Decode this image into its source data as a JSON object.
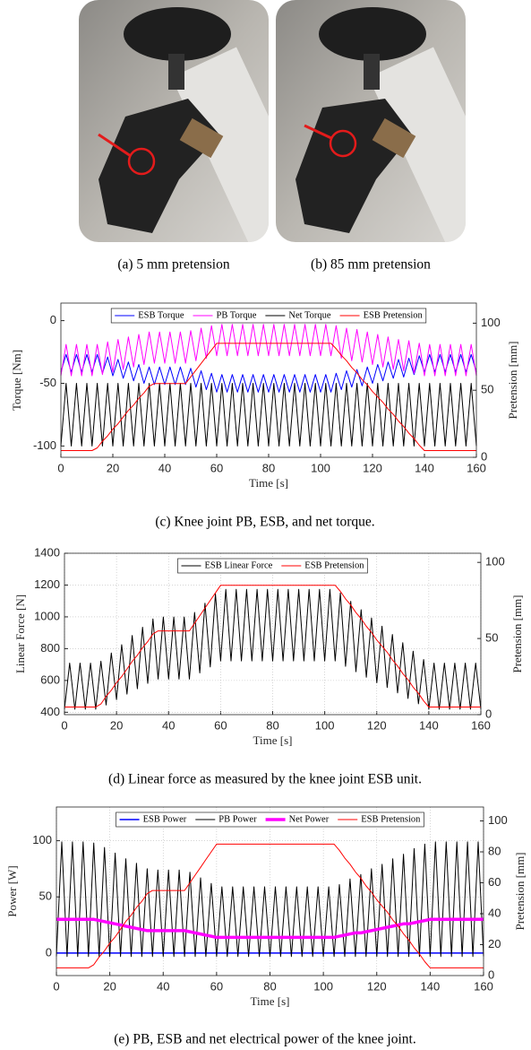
{
  "photos": [
    {
      "caption": "(a) 5 mm pretension"
    },
    {
      "caption": "(b) 85 mm pretension"
    }
  ],
  "chart_data": [
    {
      "type": "line",
      "caption": "(c) Knee joint PB, ESB, and net torque.",
      "xlabel": "Time [s]",
      "ylabel": "Torque [Nm]",
      "y2label": "Pretension [mm]",
      "xlim": [
        0,
        160
      ],
      "xticks": [
        0,
        20,
        40,
        60,
        80,
        100,
        120,
        140,
        160
      ],
      "ylim": [
        -109,
        14
      ],
      "yticks": [
        -100,
        -50,
        0
      ],
      "y2lim": [
        0,
        115
      ],
      "y2ticks": [
        0,
        50,
        100
      ],
      "grid": false,
      "legend": "top",
      "x": [
        0,
        2,
        4,
        6,
        8,
        10,
        12,
        14,
        16,
        18,
        20,
        22,
        24,
        26,
        28,
        30,
        32,
        34,
        36,
        38,
        40,
        42,
        44,
        46,
        48,
        50,
        52,
        54,
        56,
        58,
        60,
        62,
        64,
        66,
        68,
        70,
        72,
        74,
        76,
        78,
        80,
        82,
        84,
        86,
        88,
        90,
        92,
        94,
        96,
        98,
        100,
        102,
        104,
        106,
        108,
        110,
        112,
        114,
        116,
        118,
        120,
        122,
        124,
        126,
        128,
        130,
        132,
        134,
        136,
        138,
        140,
        142,
        144,
        146,
        148,
        150,
        152,
        154,
        156,
        158,
        160
      ],
      "series": [
        {
          "name": "ESB Torque",
          "color": "#0000ff",
          "values": [
            -41,
            -27,
            -41,
            -27,
            -41,
            -27,
            -41,
            -27,
            -42,
            -29,
            -44,
            -31,
            -46,
            -33,
            -48,
            -35,
            -50,
            -37,
            -51,
            -37,
            -51,
            -37,
            -51,
            -37,
            -51,
            -38,
            -53,
            -40,
            -55,
            -42,
            -57,
            -43,
            -57,
            -43,
            -57,
            -43,
            -57,
            -43,
            -57,
            -43,
            -57,
            -43,
            -57,
            -43,
            -57,
            -43,
            -57,
            -43,
            -57,
            -43,
            -57,
            -43,
            -57,
            -42,
            -55,
            -40,
            -53,
            -39,
            -52,
            -37,
            -50,
            -35,
            -48,
            -33,
            -46,
            -31,
            -45,
            -30,
            -43,
            -28,
            -41,
            -27,
            -41,
            -27,
            -41,
            -27,
            -41,
            -27,
            -41,
            -27,
            -41
          ]
        },
        {
          "name": "PB Torque",
          "color": "#ff00ff",
          "values": [
            -44,
            -19,
            -44,
            -19,
            -44,
            -19,
            -44,
            -19,
            -43,
            -17,
            -41,
            -15,
            -39,
            -13,
            -37,
            -11,
            -35,
            -9,
            -34,
            -9,
            -34,
            -9,
            -34,
            -9,
            -34,
            -8,
            -32,
            -6,
            -30,
            -4,
            -28,
            -3,
            -28,
            -3,
            -28,
            -3,
            -28,
            -3,
            -28,
            -3,
            -28,
            -3,
            -28,
            -3,
            -28,
            -3,
            -28,
            -3,
            -28,
            -3,
            -28,
            -3,
            -28,
            -4,
            -30,
            -6,
            -32,
            -7,
            -33,
            -9,
            -35,
            -11,
            -37,
            -13,
            -39,
            -15,
            -40,
            -16,
            -42,
            -18,
            -44,
            -19,
            -44,
            -19,
            -44,
            -19,
            -44,
            -19,
            -44,
            -19,
            -44
          ]
        },
        {
          "name": "Net Torque",
          "color": "#000000",
          "values": [
            -100,
            -50,
            -100,
            -50,
            -100,
            -50,
            -100,
            -50,
            -100,
            -50,
            -100,
            -50,
            -100,
            -50,
            -100,
            -50,
            -100,
            -50,
            -100,
            -50,
            -100,
            -50,
            -100,
            -50,
            -100,
            -50,
            -100,
            -50,
            -100,
            -50,
            -100,
            -50,
            -100,
            -50,
            -100,
            -50,
            -100,
            -50,
            -100,
            -50,
            -100,
            -50,
            -100,
            -50,
            -100,
            -50,
            -100,
            -50,
            -100,
            -50,
            -100,
            -50,
            -100,
            -50,
            -100,
            -50,
            -100,
            -50,
            -100,
            -50,
            -100,
            -50,
            -100,
            -50,
            -100,
            -50,
            -100,
            -50,
            -100,
            -50,
            -100,
            -50,
            -100,
            -50,
            -100,
            -50,
            -100,
            -50,
            -100,
            -50,
            -100
          ]
        },
        {
          "name": "ESB Pretension",
          "color": "#ff0000",
          "axis": "y2",
          "values": [
            5,
            5,
            5,
            5,
            5,
            5,
            5,
            7,
            12,
            16,
            21,
            25,
            30,
            35,
            39,
            44,
            48,
            53,
            55,
            55,
            55,
            55,
            55,
            55,
            55,
            60,
            65,
            70,
            75,
            80,
            85,
            85,
            85,
            85,
            85,
            85,
            85,
            85,
            85,
            85,
            85,
            85,
            85,
            85,
            85,
            85,
            85,
            85,
            85,
            85,
            85,
            85,
            85,
            81,
            76,
            72,
            67,
            63,
            58,
            54,
            49,
            45,
            41,
            36,
            32,
            27,
            23,
            18,
            14,
            9,
            5,
            5,
            5,
            5,
            5,
            5,
            5,
            5,
            5,
            5,
            5
          ]
        }
      ]
    },
    {
      "type": "line",
      "caption": "(d) Linear force as measured by the knee joint ESB unit.",
      "xlabel": "Time [s]",
      "ylabel": "Linear Force [N]",
      "y2label": "Pretension [mm]",
      "xlim": [
        0,
        160
      ],
      "xticks": [
        0,
        20,
        40,
        60,
        80,
        100,
        120,
        140,
        160
      ],
      "ylim": [
        385,
        1400
      ],
      "yticks": [
        400,
        600,
        800,
        1000,
        1200,
        1400
      ],
      "y2lim": [
        0,
        106
      ],
      "y2ticks": [
        0,
        50,
        100
      ],
      "grid": true,
      "legend": "top",
      "x": [
        0,
        2,
        4,
        6,
        8,
        10,
        12,
        14,
        16,
        18,
        20,
        22,
        24,
        26,
        28,
        30,
        32,
        34,
        36,
        38,
        40,
        42,
        44,
        46,
        48,
        50,
        52,
        54,
        56,
        58,
        60,
        62,
        64,
        66,
        68,
        70,
        72,
        74,
        76,
        78,
        80,
        82,
        84,
        86,
        88,
        90,
        92,
        94,
        96,
        98,
        100,
        102,
        104,
        106,
        108,
        110,
        112,
        114,
        116,
        118,
        120,
        122,
        124,
        126,
        128,
        130,
        132,
        134,
        136,
        138,
        140,
        142,
        144,
        146,
        148,
        150,
        152,
        154,
        156,
        158,
        160
      ],
      "series": [
        {
          "name": "ESB Linear Force",
          "color": "#000000",
          "values": [
            419,
            709,
            419,
            709,
            419,
            709,
            419,
            721,
            446,
            773,
            480,
            825,
            514,
            883,
            548,
            935,
            582,
            987,
            609,
            999,
            609,
            999,
            609,
            999,
            609,
            1028,
            647,
            1086,
            685,
            1144,
            723,
            1173,
            723,
            1173,
            723,
            1173,
            723,
            1173,
            723,
            1173,
            723,
            1173,
            723,
            1173,
            723,
            1173,
            723,
            1173,
            723,
            1173,
            723,
            1173,
            723,
            1150,
            689,
            1098,
            655,
            1045,
            620,
            993,
            586,
            941,
            556,
            889,
            522,
            837,
            487,
            784,
            453,
            732,
            419,
            709,
            419,
            709,
            419,
            709,
            419,
            709,
            419,
            709,
            419
          ]
        },
        {
          "name": "ESB Pretension",
          "color": "#ff0000",
          "axis": "y2",
          "values": [
            5,
            5,
            5,
            5,
            5,
            5,
            5,
            7,
            12,
            16,
            21,
            25,
            30,
            35,
            39,
            44,
            48,
            53,
            55,
            55,
            55,
            55,
            55,
            55,
            55,
            60,
            65,
            70,
            75,
            80,
            85,
            85,
            85,
            85,
            85,
            85,
            85,
            85,
            85,
            85,
            85,
            85,
            85,
            85,
            85,
            85,
            85,
            85,
            85,
            85,
            85,
            85,
            85,
            81,
            76,
            72,
            67,
            63,
            58,
            54,
            49,
            45,
            41,
            36,
            32,
            27,
            23,
            18,
            14,
            9,
            5,
            5,
            5,
            5,
            5,
            5,
            5,
            5,
            5,
            5,
            5
          ]
        }
      ]
    },
    {
      "type": "line",
      "caption": "(e) PB, ESB and net electrical power of the knee joint.",
      "xlabel": "Time [s]",
      "ylabel": "Power [W]",
      "y2label": "Pretension [mm]",
      "xlim": [
        0,
        160
      ],
      "xticks": [
        0,
        20,
        40,
        60,
        80,
        100,
        120,
        140,
        160
      ],
      "ylim": [
        -20,
        130
      ],
      "yticks": [
        0,
        50,
        100
      ],
      "y2lim": [
        0,
        109
      ],
      "y2ticks": [
        0,
        20,
        40,
        60,
        80,
        100
      ],
      "grid": true,
      "legend": "top",
      "x": [
        0,
        2,
        4,
        6,
        8,
        10,
        12,
        14,
        16,
        18,
        20,
        22,
        24,
        26,
        28,
        30,
        32,
        34,
        36,
        38,
        40,
        42,
        44,
        46,
        48,
        50,
        52,
        54,
        56,
        58,
        60,
        62,
        64,
        66,
        68,
        70,
        72,
        74,
        76,
        78,
        80,
        82,
        84,
        86,
        88,
        90,
        92,
        94,
        96,
        98,
        100,
        102,
        104,
        106,
        108,
        110,
        112,
        114,
        116,
        118,
        120,
        122,
        124,
        126,
        128,
        130,
        132,
        134,
        136,
        138,
        140,
        142,
        144,
        146,
        148,
        150,
        152,
        154,
        156,
        158,
        160
      ],
      "series": [
        {
          "name": "ESB Power",
          "color": "#0000ff",
          "line_width": 1.5,
          "values": [
            0,
            0,
            0,
            0,
            0,
            0,
            0,
            0,
            0,
            0,
            0,
            0,
            0,
            0,
            0,
            0,
            0,
            0,
            0,
            0,
            0,
            0,
            0,
            0,
            0,
            0,
            0,
            0,
            0,
            0,
            0,
            0,
            0,
            0,
            0,
            0,
            0,
            0,
            0,
            0,
            0,
            0,
            0,
            0,
            0,
            0,
            0,
            0,
            0,
            0,
            0,
            0,
            0,
            0,
            0,
            0,
            0,
            0,
            0,
            0,
            0,
            0,
            0,
            0,
            0,
            0,
            0,
            0,
            0,
            0,
            0,
            0,
            0,
            0,
            0,
            0,
            0,
            0,
            0,
            0,
            0
          ]
        },
        {
          "name": "PB Power",
          "color": "#000000",
          "line_width": 1,
          "values": [
            -3,
            99,
            -3,
            99,
            -3,
            99,
            -3,
            98,
            -3,
            94,
            -3,
            89,
            -3,
            84,
            -3,
            80,
            -3,
            75,
            -3,
            74,
            -3,
            74,
            -3,
            74,
            -3,
            72,
            -3,
            67,
            -3,
            62,
            -3,
            59,
            -3,
            59,
            -3,
            59,
            -3,
            59,
            -3,
            59,
            -3,
            59,
            -3,
            59,
            -3,
            59,
            -3,
            59,
            -3,
            59,
            -3,
            59,
            -3,
            61,
            -3,
            66,
            -3,
            70,
            -3,
            75,
            -3,
            79,
            -3,
            84,
            -3,
            88,
            -3,
            93,
            -3,
            97,
            -3,
            99,
            -3,
            99,
            -3,
            99,
            -3,
            99,
            -3,
            99,
            -3
          ]
        },
        {
          "name": "Net Power",
          "color": "#ff00ff",
          "line_width": 3.5,
          "values": [
            30,
            30,
            30,
            30,
            30,
            30,
            30,
            30,
            29,
            28,
            27,
            26,
            25,
            24,
            23,
            22,
            21,
            20,
            20,
            20,
            20,
            20,
            20,
            20,
            20,
            19,
            18,
            17,
            16,
            15,
            14,
            14,
            14,
            14,
            14,
            14,
            14,
            14,
            14,
            14,
            14,
            14,
            14,
            14,
            14,
            14,
            14,
            14,
            14,
            14,
            14,
            14,
            14,
            15,
            16,
            17,
            18,
            18,
            19,
            20,
            21,
            22,
            23,
            24,
            25,
            26,
            26,
            27,
            28,
            29,
            30,
            30,
            30,
            30,
            30,
            30,
            30,
            30,
            30,
            30,
            30
          ]
        },
        {
          "name": "ESB Pretension",
          "color": "#ff0000",
          "axis": "y2",
          "line_width": 1,
          "values": [
            5,
            5,
            5,
            5,
            5,
            5,
            5,
            7,
            12,
            16,
            21,
            25,
            30,
            35,
            39,
            44,
            48,
            53,
            55,
            55,
            55,
            55,
            55,
            55,
            55,
            60,
            65,
            70,
            75,
            80,
            85,
            85,
            85,
            85,
            85,
            85,
            85,
            85,
            85,
            85,
            85,
            85,
            85,
            85,
            85,
            85,
            85,
            85,
            85,
            85,
            85,
            85,
            85,
            81,
            76,
            72,
            67,
            63,
            58,
            54,
            49,
            45,
            41,
            36,
            32,
            27,
            23,
            18,
            14,
            9,
            5,
            5,
            5,
            5,
            5,
            5,
            5,
            5,
            5,
            5,
            5
          ]
        }
      ]
    }
  ]
}
